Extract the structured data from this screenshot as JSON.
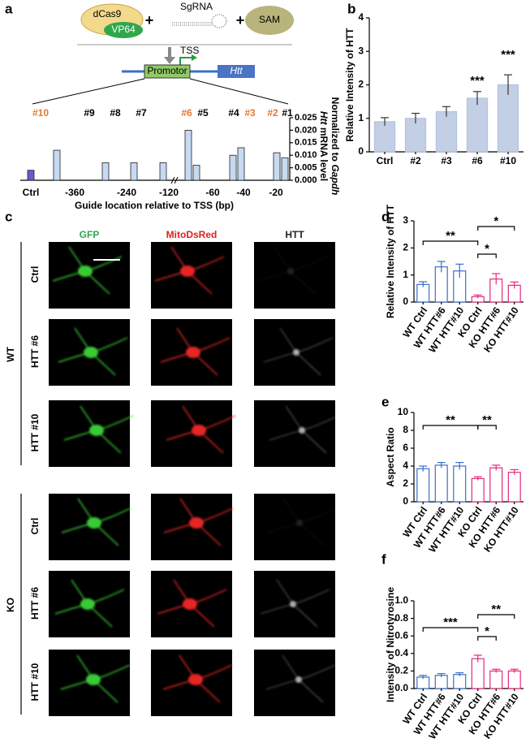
{
  "panel_labels": [
    "a",
    "b",
    "c",
    "d",
    "e",
    "f"
  ],
  "diagram": {
    "dcas9": "dCas9",
    "vp64": "VP64",
    "plus": "+",
    "sgrna": "SgRNA",
    "sam": "SAM",
    "tss": "TSS",
    "promotor": "Promotor",
    "gene": "Htt"
  },
  "microscopy": {
    "columns": [
      "GFP",
      "MitoDsRed",
      "HTT"
    ],
    "groups": [
      {
        "name": "WT",
        "rows": [
          "Ctrl",
          "HTT #6",
          "HTT #10"
        ]
      },
      {
        "name": "KO",
        "rows": [
          "Ctrl",
          "HTT #6",
          "HTT #10"
        ]
      }
    ]
  },
  "chart_data": [
    {
      "type": "guide-bar",
      "x_label": "Guide location relative to TSS (bp)",
      "y_label": [
        "Htt",
        " mRNA level",
        "Normalized to ",
        "Gapdh"
      ],
      "categories": [
        "Ctrl",
        "#10",
        "#9",
        "#8",
        "#7",
        "#6",
        "#5",
        "#4",
        "#3",
        "#2",
        "#1"
      ],
      "values": [
        0.004,
        0.012,
        0.007,
        0.007,
        0.007,
        0.02,
        0.006,
        0.01,
        0.013,
        0.011,
        0.009
      ],
      "colors": [
        "#6a5acd",
        "#c6daf2",
        "#c6daf2",
        "#c6daf2",
        "#c6daf2",
        "#c6daf2",
        "#c6daf2",
        "#c6daf2",
        "#c6daf2",
        "#c6daf2",
        "#c6daf2"
      ],
      "label_colors": [
        "#000000",
        "#e8772e",
        "#000000",
        "#000000",
        "#000000",
        "#e8772e",
        "#000000",
        "#000000",
        "#e8772e",
        "#e8772e",
        "#000000"
      ],
      "location_labels": [
        "-360",
        "-240",
        "-120",
        "-60",
        "-40",
        "-20"
      ],
      "ylim": [
        0,
        0.025
      ],
      "yticks": [
        {
          "value": 0,
          "label": "0.000"
        },
        {
          "value": 0.005,
          "label": "0.005"
        },
        {
          "value": 0.01,
          "label": "0.010"
        },
        {
          "value": 0.015,
          "label": "0.015"
        },
        {
          "value": 0.02,
          "label": "0.020"
        },
        {
          "value": 0.025,
          "label": "0.025"
        }
      ]
    },
    {
      "type": "bar",
      "y_label": "Relative Intensity of HTT",
      "categories": [
        "Ctrl",
        "#2",
        "#3",
        "#6",
        "#10"
      ],
      "values": [
        0.9,
        1.0,
        1.2,
        1.6,
        2.0
      ],
      "errors": [
        0.12,
        0.15,
        0.15,
        0.2,
        0.3
      ],
      "colors": [
        "#b3c3de",
        "#b3c3de",
        "#b3c3de",
        "#b3c3de",
        "#b3c3de"
      ],
      "annotations": [
        "***",
        "***"
      ],
      "ylim": [
        0,
        4
      ],
      "yticks": [
        0,
        1,
        2,
        3,
        4
      ]
    },
    {
      "type": "bar",
      "y_label": "Relative Intensity of HTT",
      "categories": [
        "WT Ctrl",
        "WT HTT#6",
        "WT HTT#10",
        "KO Ctrl",
        "KO HTT#6",
        "KO HTT#10"
      ],
      "values": [
        0.65,
        1.3,
        1.15,
        0.2,
        0.85,
        0.62
      ],
      "errors": [
        0.1,
        0.2,
        0.25,
        0.06,
        0.2,
        0.12
      ],
      "colors": [
        "#3b6fc6",
        "#3b6fc6",
        "#3b6fc6",
        "#e6287c",
        "#e6287c",
        "#e6287c"
      ],
      "annotations": [
        "**",
        "*",
        "*"
      ],
      "ylim": [
        0,
        3
      ],
      "yticks": [
        0,
        1,
        2,
        3
      ]
    },
    {
      "type": "bar",
      "y_label": "Aspect Ratio",
      "categories": [
        "WT Ctrl",
        "WT HTT#6",
        "WT HTT#10",
        "KO Ctrl",
        "KO HTT#6",
        "KO HTT#10"
      ],
      "values": [
        3.7,
        4.1,
        4.0,
        2.6,
        3.8,
        3.3
      ],
      "errors": [
        0.3,
        0.3,
        0.4,
        0.2,
        0.3,
        0.3
      ],
      "colors": [
        "#3b6fc6",
        "#3b6fc6",
        "#3b6fc6",
        "#e6287c",
        "#e6287c",
        "#e6287c"
      ],
      "annotations": [
        "**",
        "**"
      ],
      "ylim": [
        0,
        10
      ],
      "yticks": [
        0,
        2,
        4,
        6,
        8,
        10
      ]
    },
    {
      "type": "bar",
      "y_label": "Intensity of Nitrotyrosine",
      "categories": [
        "WT Ctrl",
        "WT HTT#6",
        "WT HTT#10",
        "KO Ctrl",
        "KO HTT#6",
        "KO HTT#10"
      ],
      "values": [
        0.13,
        0.15,
        0.16,
        0.34,
        0.2,
        0.2
      ],
      "errors": [
        0.02,
        0.02,
        0.02,
        0.04,
        0.02,
        0.02
      ],
      "colors": [
        "#3b6fc6",
        "#3b6fc6",
        "#3b6fc6",
        "#e6287c",
        "#e6287c",
        "#e6287c"
      ],
      "annotations": [
        "***",
        "*",
        "**"
      ],
      "ylim": [
        0,
        1.0
      ],
      "yticks": [
        {
          "value": 0,
          "label": "0.0"
        },
        0.2,
        0.4,
        0.6,
        0.8,
        {
          "value": 1.0,
          "label": "1.0"
        }
      ]
    }
  ]
}
